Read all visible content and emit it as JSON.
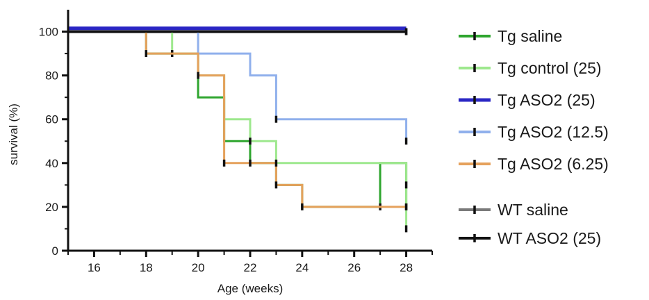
{
  "chart_data": {
    "type": "line",
    "step": true,
    "xlabel": "Age (weeks)",
    "ylabel": "survival (%)",
    "xlim": [
      15,
      29
    ],
    "ylim": [
      0,
      110
    ],
    "xticks": [
      16,
      18,
      20,
      22,
      24,
      26,
      28
    ],
    "yticks": [
      0,
      20,
      40,
      60,
      80,
      100
    ],
    "grid": false,
    "legend_position": "right",
    "series": [
      {
        "name": "WT saline",
        "color": "#7a7a7a",
        "width": 5,
        "points": [
          [
            15,
            100
          ],
          [
            28,
            100
          ]
        ],
        "censor": [
          [
            28,
            100
          ]
        ]
      },
      {
        "name": "Tg saline",
        "color": "#2ea52e",
        "width": 3,
        "points": [
          [
            15,
            100
          ],
          [
            18,
            100
          ],
          [
            18,
            90
          ],
          [
            20,
            90
          ],
          [
            20,
            70
          ],
          [
            21,
            70
          ],
          [
            21,
            50
          ],
          [
            22,
            50
          ],
          [
            22,
            40
          ],
          [
            23,
            40
          ],
          [
            23,
            30
          ],
          [
            24,
            30
          ],
          [
            24,
            20
          ],
          [
            27,
            20
          ],
          [
            27,
            40
          ],
          [
            28,
            40
          ],
          [
            28,
            20
          ]
        ],
        "censor": [
          [
            27,
            20
          ],
          [
            28,
            20
          ]
        ]
      },
      {
        "name": "Tg control (25)",
        "color": "#9ee88e",
        "width": 3,
        "points": [
          [
            15,
            100
          ],
          [
            19,
            100
          ],
          [
            19,
            90
          ],
          [
            20,
            90
          ],
          [
            20,
            80
          ],
          [
            21,
            80
          ],
          [
            21,
            60
          ],
          [
            22,
            60
          ],
          [
            22,
            50
          ],
          [
            23,
            50
          ],
          [
            23,
            40
          ],
          [
            28,
            40
          ],
          [
            28,
            10
          ]
        ],
        "censor": [
          [
            19,
            90
          ],
          [
            22,
            50
          ],
          [
            28,
            30
          ],
          [
            28,
            10
          ]
        ]
      },
      {
        "name": "Tg ASO2 (12.5)",
        "color": "#90b0ec",
        "width": 3,
        "points": [
          [
            15,
            100
          ],
          [
            20,
            100
          ],
          [
            20,
            90
          ],
          [
            22,
            90
          ],
          [
            22,
            80
          ],
          [
            23,
            80
          ],
          [
            23,
            60
          ],
          [
            28,
            60
          ],
          [
            28,
            50
          ]
        ],
        "censor": [
          [
            23,
            60
          ],
          [
            28,
            50
          ]
        ]
      },
      {
        "name": "Tg ASO2 (6.25)",
        "color": "#e5a15c",
        "width": 3,
        "points": [
          [
            15,
            100
          ],
          [
            18,
            100
          ],
          [
            18,
            90
          ],
          [
            20,
            90
          ],
          [
            20,
            80
          ],
          [
            21,
            80
          ],
          [
            21,
            40
          ],
          [
            23,
            40
          ],
          [
            23,
            30
          ],
          [
            24,
            30
          ],
          [
            24,
            20
          ],
          [
            28,
            20
          ],
          [
            28,
            20
          ]
        ],
        "censor": [
          [
            18,
            90
          ],
          [
            20,
            80
          ],
          [
            21,
            40
          ],
          [
            22,
            40
          ],
          [
            23,
            40
          ],
          [
            23,
            30
          ],
          [
            24,
            20
          ],
          [
            28,
            20
          ]
        ]
      },
      {
        "name": "Tg ASO2 (25)",
        "color": "#2a26c4",
        "width": 5,
        "points": [
          [
            15,
            101.5
          ],
          [
            28,
            101.5
          ]
        ],
        "censor": []
      },
      {
        "name": "WT ASO2 (25)",
        "color": "#111111",
        "width": 3,
        "points": [
          [
            15,
            100
          ],
          [
            28,
            100
          ]
        ],
        "censor": [
          [
            28,
            100
          ]
        ]
      }
    ],
    "legend": [
      {
        "name": "Tg saline",
        "color": "#2ea52e",
        "width": 4,
        "marker": true
      },
      {
        "name": "Tg control (25)",
        "color": "#9ee88e",
        "width": 4,
        "marker": true
      },
      {
        "name": "Tg ASO2 (25)",
        "color": "#2a26c4",
        "width": 5,
        "marker": true
      },
      {
        "name": "Tg ASO2 (12.5)",
        "color": "#90b0ec",
        "width": 4,
        "marker": true
      },
      {
        "name": "Tg ASO2 (6.25)",
        "color": "#e5a15c",
        "width": 4,
        "marker": true
      },
      {
        "name": "WT saline",
        "color": "#7a7a7a",
        "width": 4,
        "marker": true
      },
      {
        "name": "WT ASO2 (25)",
        "color": "#111111",
        "width": 4,
        "marker": true
      }
    ]
  }
}
